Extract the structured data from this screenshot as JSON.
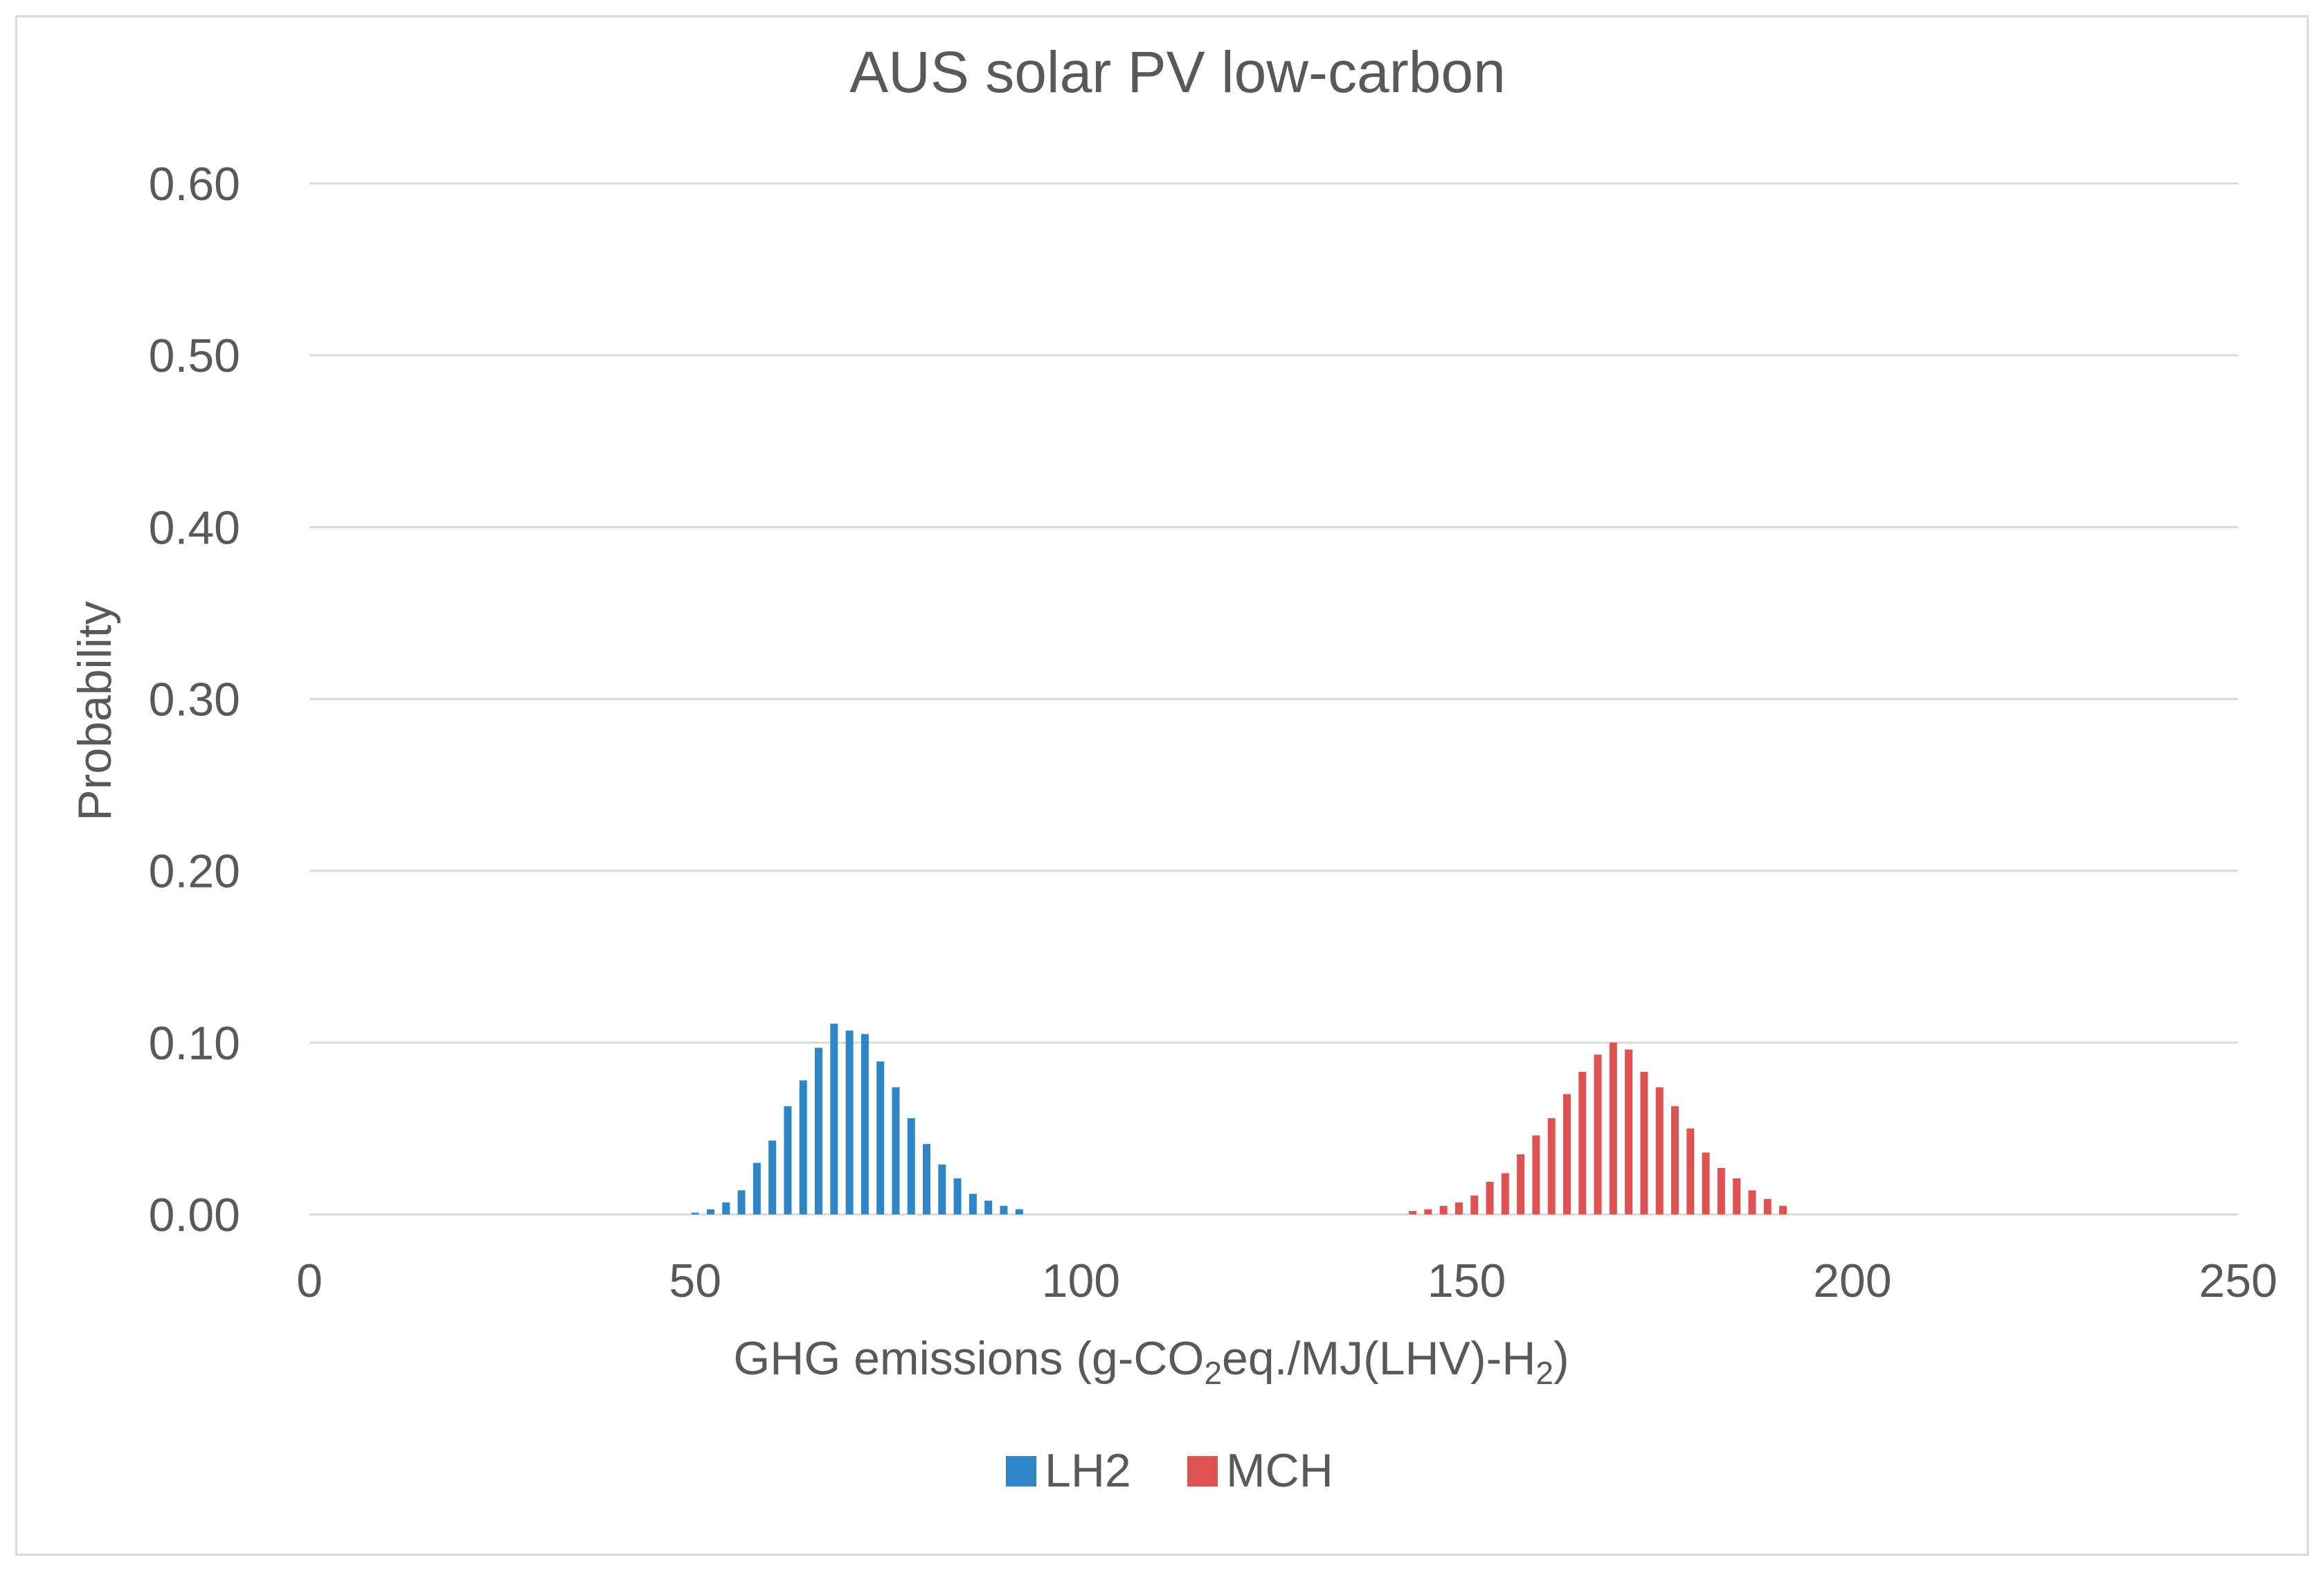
{
  "chart_data": {
    "type": "bar",
    "title": "AUS solar PV low-carbon",
    "xlabel": {
      "prefix": "GHG emissions (g-CO",
      "sub1": "2",
      "middle": "eq./MJ(LHV)-H",
      "sub2": "2",
      "suffix": ")"
    },
    "ylabel": "Probability",
    "xlim": [
      0,
      250
    ],
    "ylim": [
      0,
      0.6
    ],
    "x_ticks": [
      0,
      50,
      100,
      150,
      200,
      250
    ],
    "x_tick_labels": [
      "0",
      "50",
      "100",
      "150",
      "200",
      "250"
    ],
    "y_ticks": [
      0,
      0.1,
      0.2,
      0.3,
      0.4,
      0.5,
      0.6
    ],
    "y_tick_labels": [
      "0.00",
      "0.10",
      "0.20",
      "0.30",
      "0.40",
      "0.50",
      "0.60"
    ],
    "grid": true,
    "legend_position": "bottom",
    "series": [
      {
        "name": "LH2",
        "color": "#2e86c8",
        "x": [
          50,
          52,
          54,
          56,
          58,
          60,
          62,
          64,
          66,
          68,
          70,
          72,
          74,
          76,
          78,
          80,
          82,
          84,
          86,
          88,
          90,
          92
        ],
        "values": [
          0.001,
          0.003,
          0.007,
          0.014,
          0.03,
          0.043,
          0.063,
          0.078,
          0.097,
          0.111,
          0.107,
          0.105,
          0.089,
          0.074,
          0.056,
          0.041,
          0.029,
          0.021,
          0.012,
          0.008,
          0.005,
          0.003
        ]
      },
      {
        "name": "MCH",
        "color": "#e05252",
        "x": [
          143,
          145,
          147,
          149,
          151,
          153,
          155,
          157,
          159,
          161,
          163,
          165,
          167,
          169,
          171,
          173,
          175,
          177,
          179,
          181,
          183,
          185,
          187,
          189,
          191
        ],
        "values": [
          0.002,
          0.003,
          0.005,
          0.007,
          0.011,
          0.019,
          0.024,
          0.035,
          0.046,
          0.056,
          0.07,
          0.083,
          0.093,
          0.1,
          0.096,
          0.083,
          0.074,
          0.063,
          0.05,
          0.036,
          0.027,
          0.021,
          0.014,
          0.009,
          0.005
        ]
      }
    ]
  }
}
